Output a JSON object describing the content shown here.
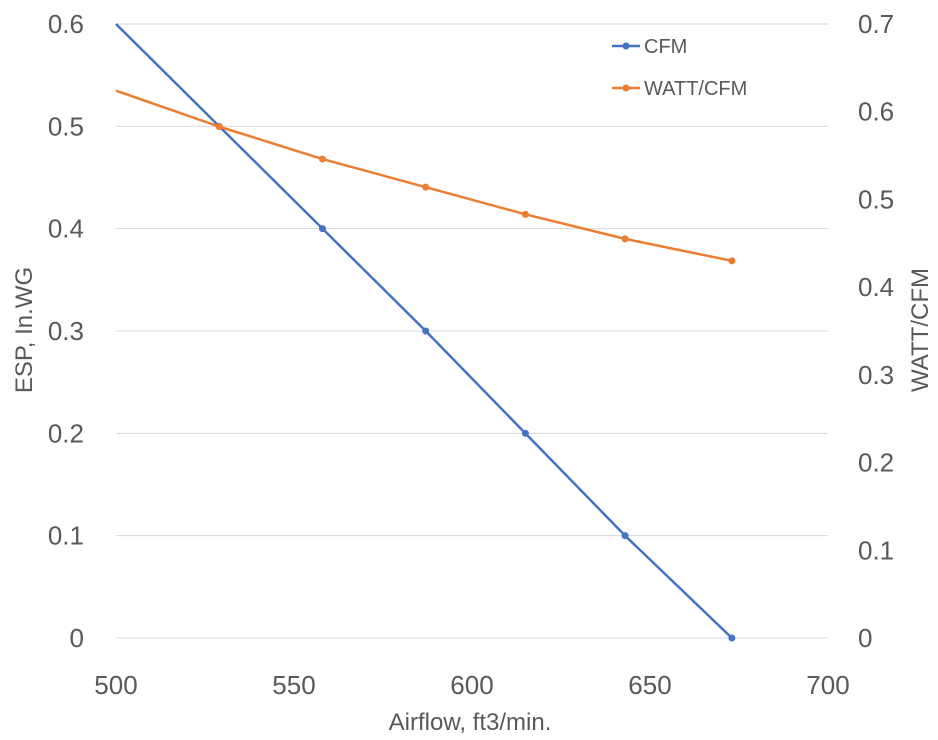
{
  "chart_data": {
    "type": "line",
    "xlabel": "Airflow, ft3/min.",
    "ylabel": "ESP, In.WG",
    "y2label": "WATT/CFM",
    "xlim": [
      500,
      700
    ],
    "ylim": [
      0,
      0.6
    ],
    "y2lim": [
      0,
      0.7
    ],
    "x_ticks": [
      "500",
      "550",
      "600",
      "650",
      "700"
    ],
    "y_ticks": [
      "0",
      "0.1",
      "0.2",
      "0.3",
      "0.4",
      "0.5",
      "0.6"
    ],
    "y2_ticks": [
      "0",
      "0.1",
      "0.2",
      "0.3",
      "0.4",
      "0.5",
      "0.6",
      "0.7"
    ],
    "grid": true,
    "legend_position": "top-right",
    "series": [
      {
        "name": "CFM",
        "axis": "left",
        "color": "#4472c4",
        "x": [
          500,
          529,
          558,
          587,
          615,
          643,
          673
        ],
        "y": [
          0.6,
          0.5,
          0.4,
          0.3,
          0.2,
          0.1,
          0.0
        ]
      },
      {
        "name": "WATT/CFM",
        "axis": "right",
        "color": "#ed7d31",
        "x": [
          500,
          529,
          558,
          587,
          615,
          643,
          673
        ],
        "y": [
          0.624,
          0.583,
          0.546,
          0.514,
          0.483,
          0.455,
          0.43
        ]
      }
    ]
  }
}
